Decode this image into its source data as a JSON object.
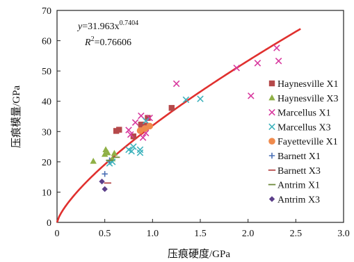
{
  "chart_data": {
    "type": "scatter",
    "xlabel": "压痕硬度/GPa",
    "ylabel": "压痕模量/GPa",
    "xlim": [
      0,
      3.0
    ],
    "ylim": [
      0,
      70
    ],
    "x_ticks": [
      "0",
      "0.5",
      "1.0",
      "1.5",
      "2.0",
      "2.5",
      "3.0"
    ],
    "y_ticks": [
      "0",
      "10",
      "20",
      "30",
      "40",
      "50",
      "60",
      "70"
    ],
    "x_tick_values": [
      0,
      0.5,
      1.0,
      1.5,
      2.0,
      2.5,
      3.0
    ],
    "y_tick_values": [
      0,
      10,
      20,
      30,
      40,
      50,
      60,
      70
    ],
    "grid": false,
    "legend_position": "right",
    "fit": {
      "equation_prefix": "y",
      "equation_body": "=31.963x",
      "equation_exponent": "0.7404",
      "r2_prefix": "R",
      "r2_power": "2",
      "r2_value": "=0.76606",
      "coefficient": 31.963,
      "exponent": 0.7404,
      "x_range": [
        0,
        2.55
      ],
      "color": "#e0302e"
    },
    "series": [
      {
        "name": "Haynesville X1",
        "marker": "square",
        "color": "#b5494a",
        "points": [
          [
            0.62,
            30.2
          ],
          [
            0.65,
            30.6
          ],
          [
            0.88,
            32.3
          ],
          [
            0.92,
            32.0
          ],
          [
            0.95,
            34.5
          ],
          [
            1.2,
            37.8
          ],
          [
            0.8,
            28.4
          ]
        ]
      },
      {
        "name": "Haynesville X3",
        "marker": "triangle",
        "color": "#8fb046",
        "points": [
          [
            0.38,
            20.2
          ],
          [
            0.5,
            22.5
          ],
          [
            0.51,
            24.0
          ],
          [
            0.53,
            23.0
          ],
          [
            0.58,
            21.0
          ],
          [
            0.6,
            22.8
          ]
        ]
      },
      {
        "name": "Marcellus X1",
        "marker": "x",
        "color": "#d8399e",
        "points": [
          [
            0.75,
            30.5
          ],
          [
            0.77,
            29.0
          ],
          [
            0.82,
            33.0
          ],
          [
            0.88,
            35.2
          ],
          [
            0.9,
            28.0
          ],
          [
            0.93,
            29.5
          ],
          [
            0.97,
            34.5
          ],
          [
            1.25,
            45.8
          ],
          [
            1.88,
            51.0
          ],
          [
            2.03,
            41.8
          ],
          [
            2.1,
            52.6
          ],
          [
            2.3,
            57.6
          ],
          [
            2.32,
            53.3
          ]
        ]
      },
      {
        "name": "Marcellus X3",
        "marker": "x",
        "color": "#3fb3bd",
        "points": [
          [
            0.55,
            19.5
          ],
          [
            0.58,
            20.0
          ],
          [
            0.75,
            24.0
          ],
          [
            0.78,
            23.5
          ],
          [
            0.8,
            25.0
          ],
          [
            0.87,
            24.0
          ],
          [
            0.87,
            23.0
          ],
          [
            0.93,
            33.5
          ],
          [
            1.35,
            40.5
          ],
          [
            1.5,
            40.8
          ]
        ]
      },
      {
        "name": "Fayetteville X1",
        "marker": "circle",
        "color": "#ef8a4c",
        "points": [
          [
            0.87,
            30.3
          ],
          [
            0.92,
            31.0
          ],
          [
            0.97,
            31.8
          ]
        ]
      },
      {
        "name": "Barnett X1",
        "marker": "plus",
        "color": "#4a6fb5",
        "points": [
          [
            0.5,
            16.0
          ],
          [
            0.55,
            20.5
          ]
        ]
      },
      {
        "name": "Barnett X3",
        "marker": "dash",
        "color": "#b5494a",
        "points": [
          [
            0.53,
            13.0
          ]
        ]
      },
      {
        "name": "Antrim X1",
        "marker": "dash",
        "color": "#6d8a3c",
        "points": [
          [
            0.55,
            20.5
          ],
          [
            0.62,
            21.5
          ]
        ]
      },
      {
        "name": "Antrim X3",
        "marker": "diamond",
        "color": "#5c3f8a",
        "points": [
          [
            0.47,
            13.5
          ],
          [
            0.5,
            11.0
          ]
        ]
      }
    ]
  }
}
